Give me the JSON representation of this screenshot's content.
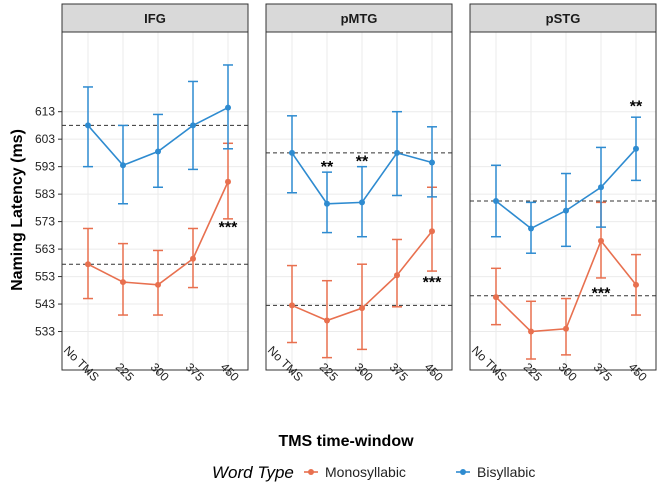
{
  "chart_data": {
    "type": "line",
    "ylabel": "Naming Latency (ms)",
    "xlabel": "TMS time-window",
    "categories": [
      "No TMS",
      "225",
      "300",
      "375",
      "450"
    ],
    "ylim": [
      519,
      642
    ],
    "yticks": [
      533,
      543,
      553,
      563,
      573,
      583,
      593,
      603,
      613
    ],
    "legend": {
      "title": "Word Type",
      "position": "bottom",
      "entries": [
        {
          "name": "Monosyllabic",
          "color": "#E8704F"
        },
        {
          "name": "Bisyllabic",
          "color": "#2E8BD0"
        }
      ]
    },
    "panels": [
      {
        "title": "IFG",
        "series": [
          {
            "name": "Monosyllabic",
            "color": "#E8704F",
            "values": [
              557.5,
              551,
              550,
              559.5,
              587.5
            ],
            "lower": [
              545,
              539,
              539,
              549,
              574
            ],
            "upper": [
              570.5,
              565,
              562.5,
              570.5,
              601.5
            ],
            "baseline": 557.5
          },
          {
            "name": "Bisyllabic",
            "color": "#2E8BD0",
            "values": [
              608,
              593.5,
              598.5,
              608,
              614.5
            ],
            "lower": [
              593,
              579.5,
              585.5,
              592,
              599.5
            ],
            "upper": [
              622,
              608,
              612,
              624,
              630
            ],
            "baseline": 608
          }
        ],
        "annotations": [
          {
            "text": "***",
            "category": "450",
            "y": 569
          }
        ]
      },
      {
        "title": "pMTG",
        "series": [
          {
            "name": "Monosyllabic",
            "color": "#E8704F",
            "values": [
              542.5,
              537,
              541.5,
              553.5,
              569.5
            ],
            "lower": [
              529,
              523.5,
              526.5,
              542,
              555
            ],
            "upper": [
              557,
              551.5,
              557.5,
              566.5,
              585.5
            ],
            "baseline": 542.5
          },
          {
            "name": "Bisyllabic",
            "color": "#2E8BD0",
            "values": [
              598,
              579.5,
              580,
              598,
              594.5
            ],
            "lower": [
              583.5,
              569,
              567.5,
              582.5,
              582
            ],
            "upper": [
              611.5,
              591,
              593,
              613,
              607.5
            ],
            "baseline": 598
          }
        ],
        "annotations": [
          {
            "text": "**",
            "category": "225",
            "y": 591
          },
          {
            "text": "**",
            "category": "300",
            "y": 593
          },
          {
            "text": "***",
            "category": "450",
            "y": 549
          }
        ]
      },
      {
        "title": "pSTG",
        "series": [
          {
            "name": "Monosyllabic",
            "color": "#E8704F",
            "values": [
              545.5,
              533,
              534,
              566,
              550
            ],
            "lower": [
              535.5,
              523,
              524.5,
              552.5,
              539
            ],
            "upper": [
              556,
              544,
              545,
              580,
              561
            ],
            "baseline": 546
          },
          {
            "name": "Bisyllabic",
            "color": "#2E8BD0",
            "values": [
              580.5,
              570.5,
              577,
              585.5,
              599.5
            ],
            "lower": [
              567.5,
              561.5,
              564,
              571,
              588
            ],
            "upper": [
              593.5,
              580,
              590.5,
              600,
              611
            ],
            "baseline": 580.5
          }
        ],
        "annotations": [
          {
            "text": "***",
            "category": "375",
            "y": 545
          },
          {
            "text": "**",
            "category": "450",
            "y": 613
          }
        ]
      }
    ]
  }
}
